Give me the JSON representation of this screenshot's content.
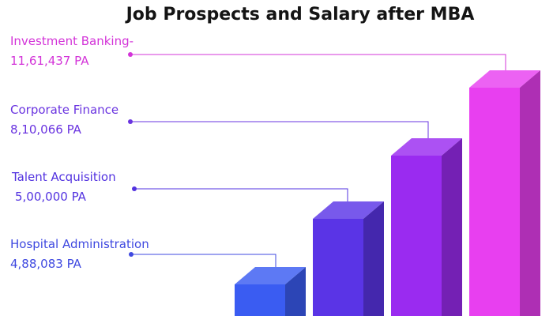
{
  "chart_data": {
    "type": "bar",
    "title": "Job Prospects and Salary after MBA",
    "categories": [
      "Hospital Administration",
      "Talent Acquisition",
      "Corporate Finance",
      "Investment Banking-"
    ],
    "values": [
      488083,
      500000,
      810066,
      1161437
    ],
    "value_labels": [
      "4,88,083 PA",
      "5,00,000 PA",
      "8,10,066 PA",
      "11,61,437 PA"
    ],
    "colors": [
      "#3a5cf2",
      "#5a34e6",
      "#9a2bf0",
      "#e83ff0"
    ],
    "label_colors": [
      "#3f49e0",
      "#5232e0",
      "#6a34e0",
      "#d334d8"
    ],
    "xlabel": "",
    "ylabel": "",
    "grid": false,
    "legend": "none"
  }
}
